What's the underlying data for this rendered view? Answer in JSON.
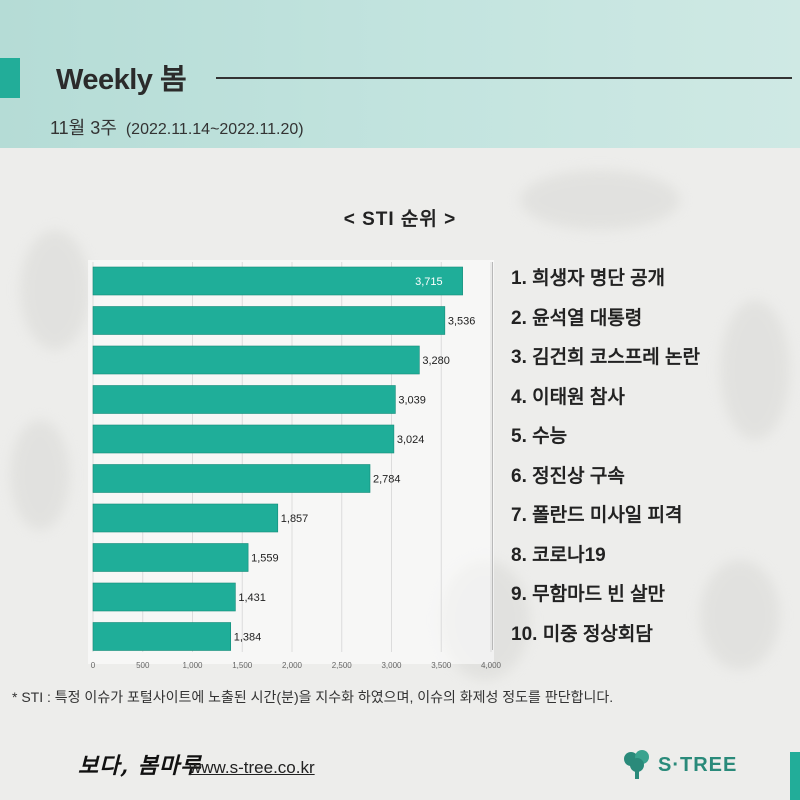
{
  "header": {
    "title": "Weekly 봄",
    "week": "11월 3주",
    "period": "(2022.11.14~2022.11.20)"
  },
  "chart_heading": "< STI 순위 >",
  "chart_data": {
    "type": "bar",
    "orientation": "horizontal",
    "categories": [
      "1",
      "2",
      "3",
      "4",
      "5",
      "6",
      "7",
      "8",
      "9",
      "10"
    ],
    "values": [
      3715,
      3536,
      3280,
      3039,
      3024,
      2784,
      1857,
      1559,
      1431,
      1384
    ],
    "value_labels": [
      "3,715",
      "3,536",
      "3,280",
      "3,039",
      "3,024",
      "2,784",
      "1,857",
      "1,559",
      "1,431",
      "1,384"
    ],
    "xlim": [
      0,
      4000
    ],
    "x_ticks": [
      "0",
      "500",
      "1,000",
      "1,500",
      "2,000",
      "2,500",
      "3,000",
      "3,500",
      "4,000"
    ],
    "bar_color": "#1fae99",
    "grid": "vertical"
  },
  "ranking": [
    "1. 희생자 명단 공개",
    "2. 윤석열 대통령",
    "3. 김건희 코스프레 논란",
    "4. 이태원 참사",
    "5. 수능",
    "6. 정진상 구속",
    "7. 폴란드 미사일 피격",
    "8. 코로나19",
    "9. 무함마드 빈 살만",
    "10. 미중 정상회담"
  ],
  "footnote": "* STI : 특정 이슈가 포털사이트에 노출된 시간(분)을 지수화 하였으며, 이슈의 화제성 정도를 판단합니다.",
  "footer": {
    "signature": "보다, 봄마루",
    "website": "www.s-tree.co.kr",
    "brand": "S·TREE",
    "brand_icon": "tree-icon"
  },
  "colors": {
    "accent": "#22ad99",
    "header_bg": "#c3e4df",
    "bar": "#1fae99"
  }
}
